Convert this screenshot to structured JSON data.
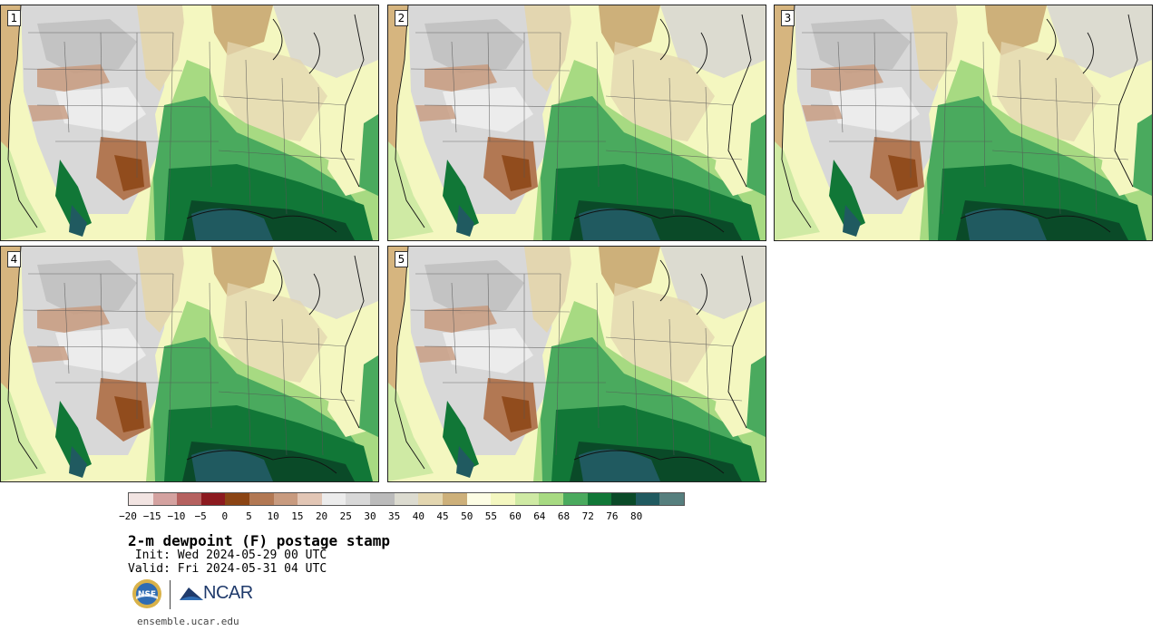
{
  "panels": [
    {
      "label": "1"
    },
    {
      "label": "2"
    },
    {
      "label": "3"
    },
    {
      "label": "4"
    },
    {
      "label": "5"
    }
  ],
  "colorbar": {
    "colors": [
      "#f2e4e2",
      "#d4a2a0",
      "#b5615f",
      "#8c1a1f",
      "#8b4414",
      "#b27853",
      "#c89b7f",
      "#e2c6b5",
      "#ececec",
      "#d8d8d8",
      "#bbbbbb",
      "#dcdbd0",
      "#e3d6b0",
      "#cdb07a",
      "#fdfde4",
      "#f4f7c0",
      "#cfeaa4",
      "#a7da82",
      "#4aaa5e",
      "#117737",
      "#0a4a28",
      "#205a60",
      "#567f7e"
    ],
    "tick_labels": [
      "−20",
      "−15",
      "−10",
      "−5",
      "0",
      "5",
      "10",
      "15",
      "20",
      "25",
      "30",
      "35",
      "40",
      "45",
      "50",
      "55",
      "60",
      "64",
      "68",
      "72",
      "76",
      "80"
    ]
  },
  "title": "2-m dewpoint (F) postage stamp",
  "init": " Init: Wed 2024-05-29 00 UTC",
  "valid": "Valid: Fri 2024-05-31 04 UTC",
  "logos": {
    "nsf_text": "NSF",
    "ncar_text": "NCAR"
  },
  "website": "ensemble.ucar.edu"
}
